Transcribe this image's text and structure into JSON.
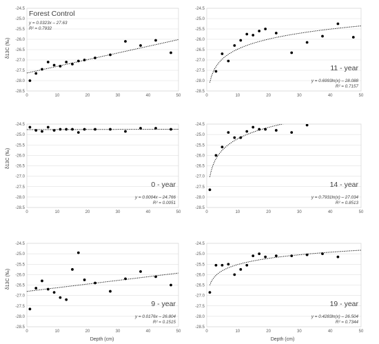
{
  "figure": {
    "xlabel": "Depth (cm)",
    "ylabel": "δ13C (‰)"
  },
  "chart_data": [
    {
      "type": "scatter",
      "title": "Forest Control",
      "title_position": "top-left",
      "equation": "y = 0.0323x – 27.63",
      "r2": "R² = 0.7932",
      "trend": {
        "kind": "linear",
        "a": 0.0323,
        "b": -27.63
      },
      "xlim": [
        0,
        50
      ],
      "ylim": [
        -28.5,
        -24.5
      ],
      "x": [
        1,
        3,
        5,
        7,
        9,
        11,
        13,
        15,
        17,
        19,
        22.5,
        27.5,
        32.5,
        37.5,
        42.5,
        47.5
      ],
      "y": [
        -28.0,
        -27.65,
        -27.45,
        -27.1,
        -27.25,
        -27.3,
        -27.1,
        -27.2,
        -27.05,
        -27.0,
        -26.9,
        -26.75,
        -26.1,
        -26.3,
        -26.05,
        -26.65
      ]
    },
    {
      "type": "scatter",
      "title": "11 - year",
      "title_position": "bottom-right",
      "equation": "y = 0.6993ln(x) – 28.088",
      "r2": "R² = 0.7157",
      "trend": {
        "kind": "log",
        "a": 0.6993,
        "b": -28.088
      },
      "xlim": [
        0,
        50
      ],
      "ylim": [
        -28.5,
        -24.5
      ],
      "x": [
        3,
        5,
        7,
        9,
        11,
        13,
        15,
        17,
        19,
        22.5,
        27.5,
        32.5,
        37.5,
        42.5,
        47.5
      ],
      "y": [
        -27.55,
        -26.7,
        -27.05,
        -26.3,
        -26.05,
        -25.75,
        -25.8,
        -25.6,
        -25.5,
        -25.7,
        -26.65,
        -26.15,
        -25.85,
        -25.25,
        -25.9
      ]
    },
    {
      "type": "scatter",
      "title": "0 - year",
      "title_position": "bottom-right",
      "equation": "y = 0.0004x – 24.766",
      "r2": "R² = 0.0051",
      "trend": {
        "kind": "linear",
        "a": 0.0004,
        "b": -24.766
      },
      "xlim": [
        0,
        50
      ],
      "ylim": [
        -28.5,
        -24.5
      ],
      "x": [
        1,
        3,
        5,
        7,
        9,
        11,
        13,
        15,
        17,
        19,
        22.5,
        27.5,
        32.5,
        37.5,
        42.5,
        47.5
      ],
      "y": [
        -24.65,
        -24.8,
        -24.85,
        -24.65,
        -24.8,
        -24.75,
        -24.75,
        -24.75,
        -24.9,
        -24.75,
        -24.75,
        -24.75,
        -24.85,
        -24.7,
        -24.7,
        -24.75
      ]
    },
    {
      "type": "scatter",
      "title": "14 - year",
      "title_position": "bottom-right",
      "equation": "y = 0.7931ln(x) – 27.034",
      "r2": "R² = 0.8513",
      "trend": {
        "kind": "log",
        "a": 0.7931,
        "b": -27.034
      },
      "xlim": [
        0,
        50
      ],
      "ylim": [
        -28.5,
        -24.5
      ],
      "x": [
        1,
        3,
        5,
        7,
        9,
        11,
        13,
        15,
        17,
        19,
        22.5,
        27.5,
        32.5
      ],
      "y": [
        -27.65,
        -26.0,
        -25.6,
        -24.9,
        -25.15,
        -25.15,
        -24.85,
        -24.65,
        -24.75,
        -24.75,
        -24.8,
        -24.9,
        -24.55
      ]
    },
    {
      "type": "scatter",
      "title": "9 - year",
      "title_position": "bottom-right",
      "equation": "y = 0.0176x – 26.804",
      "r2": "R² = 0.1515",
      "trend": {
        "kind": "linear",
        "a": 0.0176,
        "b": -26.804
      },
      "xlim": [
        0,
        50
      ],
      "ylim": [
        -28.5,
        -24.5
      ],
      "x": [
        1,
        3,
        5,
        7,
        9,
        11,
        13,
        15,
        17,
        19,
        22.5,
        27.5,
        32.5,
        37.5,
        42.5,
        47.5
      ],
      "y": [
        -27.65,
        -26.65,
        -26.3,
        -26.7,
        -26.85,
        -27.1,
        -27.2,
        -25.75,
        -24.95,
        -26.25,
        -26.4,
        -26.8,
        -26.2,
        -25.85,
        -26.1,
        -26.5
      ]
    },
    {
      "type": "scatter",
      "title": "19 - year",
      "title_position": "bottom-right",
      "equation": "y = 0.4283ln(x) – 26.504",
      "r2": "R² = 0.7344",
      "trend": {
        "kind": "log",
        "a": 0.4283,
        "b": -26.504
      },
      "xlim": [
        0,
        50
      ],
      "ylim": [
        -28.5,
        -24.5
      ],
      "x": [
        1,
        3,
        5,
        7,
        9,
        11,
        13,
        15,
        17,
        19,
        22.5,
        27.5,
        32.5,
        37.5,
        42.5
      ],
      "y": [
        -26.85,
        -25.55,
        -25.55,
        -25.5,
        -26.0,
        -25.75,
        -25.55,
        -25.1,
        -25.0,
        -25.15,
        -25.1,
        -25.1,
        -25.05,
        -25.0,
        -25.15
      ]
    }
  ],
  "axes": {
    "yticks": [
      "-24.5",
      "-25.0",
      "-25.5",
      "-26.0",
      "-26.5",
      "-27.0",
      "-27.5",
      "-28.0",
      "-28.5"
    ],
    "ytick_values": [
      -24.5,
      -25.0,
      -25.5,
      -26.0,
      -26.5,
      -27.0,
      -27.5,
      -28.0,
      -28.5
    ],
    "xticks": [
      "0",
      "10",
      "20",
      "30",
      "40",
      "50"
    ],
    "xtick_values": [
      0,
      10,
      20,
      30,
      40,
      50
    ]
  }
}
